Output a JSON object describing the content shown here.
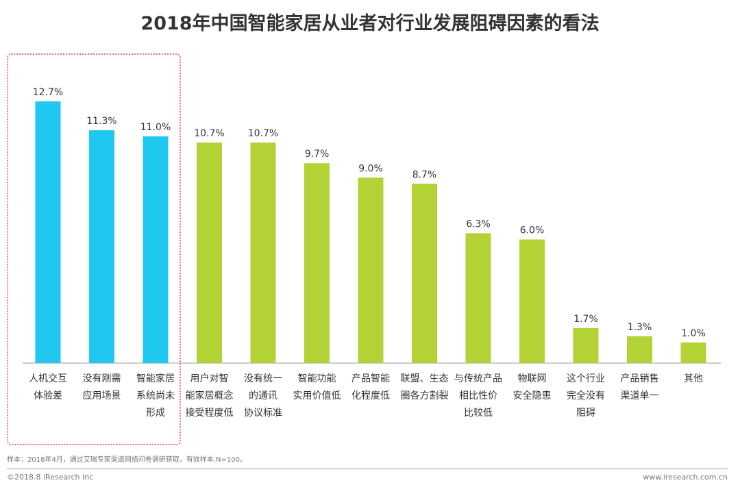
{
  "title": "2018年中国智能家居从业者对行业发展阻碍因素的看法",
  "chart_data": {
    "type": "bar",
    "title": "2018年中国智能家居从业者对行业发展阻碍因素的看法",
    "categories": [
      [
        "人机交互",
        "体验差"
      ],
      [
        "没有刚需",
        "应用场景"
      ],
      [
        "智能家居",
        "系统尚未",
        "形成"
      ],
      [
        "用户对智",
        "能家居概念",
        "接受程度低"
      ],
      [
        "没有统一",
        "的通讯",
        "协议标准"
      ],
      [
        "智能功能",
        "实用价值低"
      ],
      [
        "产品智能",
        "化程度低"
      ],
      [
        "联盟、生态",
        "圈各方割裂"
      ],
      [
        "与传统产品",
        "相比性价",
        "比较低"
      ],
      [
        "物联网",
        "安全隐患"
      ],
      [
        "这个行业",
        "完全没有",
        "阻碍"
      ],
      [
        "产品销售",
        "渠道单一"
      ],
      [
        "其他"
      ]
    ],
    "values": [
      12.7,
      11.3,
      11.0,
      10.7,
      10.7,
      9.7,
      9.0,
      8.7,
      6.3,
      6.0,
      1.7,
      1.3,
      1.0
    ],
    "value_labels": [
      "12.7%",
      "11.3%",
      "11.0%",
      "10.7%",
      "10.7%",
      "9.7%",
      "9.0%",
      "8.7%",
      "6.3%",
      "6.0%",
      "1.7%",
      "1.3%",
      "1.0%"
    ],
    "highlighted_count": 3,
    "colors": {
      "highlight": "#1ec8ee",
      "normal": "#b2d235"
    },
    "ylim": [
      0,
      14
    ],
    "xlabel": "",
    "ylabel": ""
  },
  "footer": {
    "note": "样本：2018年4月，通过艾瑞专家渠道网络问卷调研获取，有效样本,N=100。",
    "copyright": "©2018.8 iResearch Inc",
    "url": "www.iresearch.com.cn"
  }
}
